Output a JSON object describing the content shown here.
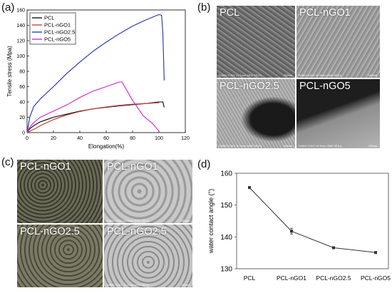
{
  "panels": {
    "a": "(a)",
    "b": "(b)",
    "c": "(c)",
    "d": "(d)"
  },
  "sem_images": [
    {
      "caption": "PCL",
      "info": "S4800 3.0kV 11.1mm x500 SE(U)",
      "scale": "100um"
    },
    {
      "caption": "PCL-nGO1",
      "info": "S4800 3.0kV 10.9mm x500 SE(U)",
      "scale": "100um"
    },
    {
      "caption": "PCL-nGO2.5",
      "info": "S4800 3.0kV 10.9mm x500 SE(U)",
      "scale": "100um"
    },
    {
      "caption": "PCL-nGO5",
      "info": "S4800 3.0kV 10.9mm x500 SE(U)",
      "scale": "100um"
    }
  ],
  "cell_images": [
    {
      "caption": "PCL-nGO1",
      "info": "",
      "scale": ""
    },
    {
      "caption": "PCL-nGO1",
      "info": "S4800 3.0kV 11.0mm x250 SE(U)",
      "scale": "200um"
    },
    {
      "caption": "PCL-nGO2.5",
      "info": "",
      "scale": ""
    },
    {
      "caption": "PCL-nGO2.5",
      "info": "S4800 3.0kV 11.0mm x250 SE(U)",
      "scale": "200um"
    }
  ],
  "chart_data": [
    {
      "type": "line",
      "title": "",
      "xlabel": "Elongation(%)",
      "ylabel": "Tensile stress (Mpa)",
      "xlim": [
        0,
        120
      ],
      "ylim": [
        0,
        160
      ],
      "xticks": [
        0,
        20,
        40,
        60,
        80,
        100,
        120
      ],
      "yticks": [
        0,
        20,
        40,
        60,
        80,
        100,
        120,
        140,
        160
      ],
      "legend": "top-left",
      "series": [
        {
          "name": "PCL",
          "color": "#000000",
          "x": [
            0,
            2,
            5,
            10,
            15,
            20,
            30,
            40,
            50,
            60,
            70,
            80,
            90,
            100,
            103,
            104
          ],
          "y": [
            0,
            5,
            9,
            14,
            17,
            20,
            24,
            28,
            31,
            33,
            35,
            36.5,
            38,
            40,
            40,
            33
          ]
        },
        {
          "name": "PCL-nGO1",
          "color": "#c0392b",
          "x": [
            0,
            3,
            6,
            10,
            15,
            20,
            30,
            40,
            50,
            60,
            70,
            80,
            90,
            100
          ],
          "y": [
            0,
            2.5,
            5,
            9,
            13,
            17,
            23,
            27.5,
            31,
            33.5,
            35.5,
            37,
            38,
            39
          ]
        },
        {
          "name": "PCL-nGO2.5",
          "color": "#1f2fb5",
          "x": [
            0,
            2,
            5,
            10,
            15,
            20,
            30,
            40,
            50,
            60,
            70,
            80,
            90,
            100,
            102,
            103,
            104
          ],
          "y": [
            0,
            20,
            34,
            44,
            52,
            60,
            77,
            92,
            106,
            118,
            129,
            139,
            147,
            154,
            153,
            130,
            68
          ]
        },
        {
          "name": "PCL-nGO5",
          "color": "#cc22cc",
          "x": [
            0,
            2,
            5,
            10,
            20,
            30,
            40,
            50,
            60,
            70,
            72,
            80,
            88,
            95,
            100
          ],
          "y": [
            0,
            7,
            13,
            20,
            28,
            36,
            46,
            54,
            60,
            66,
            66,
            42,
            22,
            12,
            2
          ]
        }
      ]
    },
    {
      "type": "line",
      "title": "",
      "xlabel": "",
      "ylabel": "water contact angle (°)",
      "categories": [
        "PCL",
        "PCL-nGO1",
        "PCL-nGO2.5",
        "PCL-nGO5"
      ],
      "values": [
        155.5,
        141.8,
        136.6,
        135.1
      ],
      "errors": [
        0.3,
        0.9,
        0.2,
        0.3
      ],
      "ylim": [
        130,
        160
      ],
      "yticks": [
        130,
        140,
        150,
        160
      ],
      "color": "#333333"
    }
  ]
}
